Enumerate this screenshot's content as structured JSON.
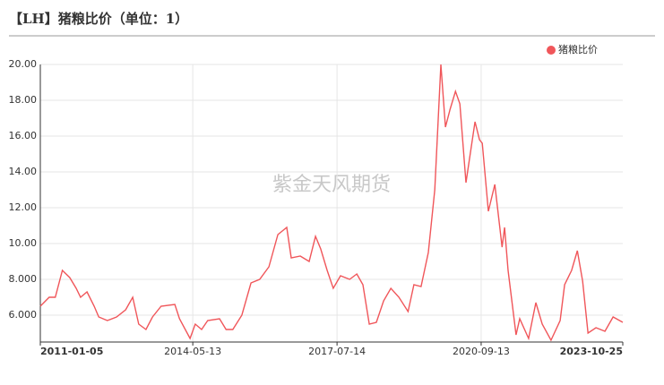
{
  "chart_data": {
    "type": "line",
    "title": "【LH】猪粮比价（单位：1）",
    "watermark": "紫金天风期货",
    "legend": "top-right",
    "grid": true,
    "xlim": [
      "2011-01-05",
      "2023-10-25"
    ],
    "xticks": [
      "2011-01-05",
      "2014-05-13",
      "2017-07-14",
      "2020-09-13",
      "2023-10-25"
    ],
    "ylim": [
      4.5,
      20
    ],
    "yticks": [
      {
        "value": 6,
        "label": "6.000"
      },
      {
        "value": 8,
        "label": "8.000"
      },
      {
        "value": 10,
        "label": "10.00"
      },
      {
        "value": 12,
        "label": "12.00"
      },
      {
        "value": 14,
        "label": "14.00"
      },
      {
        "value": 16,
        "label": "16.00"
      },
      {
        "value": 18,
        "label": "18.00"
      },
      {
        "value": 20,
        "label": "20.00"
      }
    ],
    "x": [
      "2011-01-05",
      "2011-03-17",
      "2011-05-05",
      "2011-07-01",
      "2011-08-29",
      "2011-10-20",
      "2011-11-24",
      "2012-01-15",
      "2012-03-12",
      "2012-04-18",
      "2012-06-26",
      "2012-09-08",
      "2012-11-20",
      "2013-01-16",
      "2013-03-05",
      "2013-05-02",
      "2013-06-24",
      "2013-09-01",
      "2013-12-20",
      "2014-01-26",
      "2014-04-21",
      "2014-06-02",
      "2014-07-23",
      "2014-09-10",
      "2014-12-14",
      "2015-02-04",
      "2015-03-30",
      "2015-06-11",
      "2015-08-23",
      "2015-11-01",
      "2016-01-14",
      "2016-03-26",
      "2016-06-05",
      "2016-07-11",
      "2016-09-22",
      "2016-12-02",
      "2017-01-22",
      "2017-03-05",
      "2017-04-26",
      "2017-06-14",
      "2017-08-11",
      "2017-10-23",
      "2017-12-20",
      "2018-02-07",
      "2018-03-30",
      "2018-05-26",
      "2018-07-23",
      "2018-09-19",
      "2018-11-23",
      "2019-02-04",
      "2019-03-23",
      "2019-05-20",
      "2019-07-17",
      "2019-09-07",
      "2019-10-26",
      "2019-12-01",
      "2020-01-08",
      "2020-02-20",
      "2020-03-26",
      "2020-05-14",
      "2020-07-26",
      "2020-08-31",
      "2020-09-22",
      "2020-11-10",
      "2021-01-01",
      "2021-02-28",
      "2021-03-20",
      "2021-04-17",
      "2021-06-20",
      "2021-07-20",
      "2021-09-29",
      "2021-11-26",
      "2022-01-16",
      "2022-03-28",
      "2022-06-09",
      "2022-07-15",
      "2022-09-09",
      "2022-10-25",
      "2022-12-07",
      "2023-01-19",
      "2023-03-24",
      "2023-06-04",
      "2023-08-08",
      "2023-10-25"
    ],
    "series": [
      {
        "name": "猪粮比价",
        "color": "#f0565a",
        "values": [
          6.5,
          7.0,
          7.0,
          8.5,
          8.1,
          7.5,
          7.0,
          7.3,
          6.5,
          5.9,
          5.7,
          5.9,
          6.3,
          7.0,
          5.5,
          5.2,
          5.9,
          6.5,
          6.6,
          5.8,
          4.7,
          5.5,
          5.2,
          5.7,
          5.8,
          5.2,
          5.2,
          6.0,
          7.8,
          8.0,
          8.7,
          10.5,
          10.9,
          9.2,
          9.3,
          9.0,
          10.4,
          9.7,
          8.5,
          7.5,
          8.2,
          8.0,
          8.3,
          7.7,
          5.5,
          5.6,
          6.8,
          7.5,
          7.0,
          6.2,
          7.7,
          7.6,
          9.5,
          13.0,
          20.0,
          16.5,
          17.5,
          18.5,
          17.8,
          13.4,
          16.8,
          15.8,
          15.6,
          11.8,
          13.3,
          9.8,
          10.9,
          8.5,
          4.9,
          5.8,
          4.7,
          6.7,
          5.5,
          4.6,
          5.7,
          7.7,
          8.5,
          9.6,
          7.9,
          5.0,
          5.3,
          5.1,
          5.9,
          5.6
        ]
      }
    ]
  }
}
